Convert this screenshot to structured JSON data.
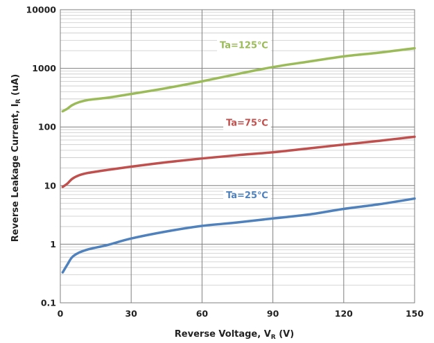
{
  "chart_data": {
    "type": "line",
    "xlabel_main": "Reverse Voltage, V",
    "xlabel_sub": "R",
    "xlabel_unit": " (V)",
    "ylabel_main": "Reverse Leakage Current, I",
    "ylabel_sub": "R",
    "ylabel_unit": " (uA)",
    "xlim": [
      0,
      150
    ],
    "ylim": [
      0.1,
      10000
    ],
    "yscale": "log",
    "grid": true,
    "x_ticks": [
      0,
      30,
      60,
      90,
      120,
      150
    ],
    "x_tick_labels": [
      "0",
      "30",
      "60",
      "90",
      "120",
      "150"
    ],
    "y_ticks": [
      0.1,
      1,
      10,
      100,
      1000,
      10000
    ],
    "y_tick_labels": [
      "0.1",
      "1",
      "10",
      "100",
      "1000",
      "10000"
    ],
    "series": [
      {
        "name": "Ta=125℃",
        "color": "#9BBB59",
        "label_at": [
          88,
          2200
        ],
        "points": [
          [
            1,
            185
          ],
          [
            3,
            205
          ],
          [
            5,
            235
          ],
          [
            8,
            265
          ],
          [
            12,
            290
          ],
          [
            20,
            315
          ],
          [
            30,
            365
          ],
          [
            45,
            460
          ],
          [
            60,
            600
          ],
          [
            75,
            800
          ],
          [
            90,
            1050
          ],
          [
            105,
            1300
          ],
          [
            120,
            1600
          ],
          [
            135,
            1850
          ],
          [
            150,
            2200
          ]
        ]
      },
      {
        "name": "Ta=75℃",
        "color": "#C0504D",
        "label_at": [
          88,
          105
        ],
        "points": [
          [
            1,
            9.5
          ],
          [
            3,
            10.8
          ],
          [
            5,
            13
          ],
          [
            8,
            15
          ],
          [
            12,
            16.5
          ],
          [
            20,
            18.5
          ],
          [
            30,
            21
          ],
          [
            45,
            25
          ],
          [
            60,
            29
          ],
          [
            75,
            33
          ],
          [
            90,
            37
          ],
          [
            105,
            43
          ],
          [
            120,
            50
          ],
          [
            135,
            58
          ],
          [
            150,
            68
          ]
        ]
      },
      {
        "name": "Ta=25℃",
        "color": "#4F81BD",
        "label_at": [
          88,
          6.1
        ],
        "points": [
          [
            1,
            0.33
          ],
          [
            3,
            0.45
          ],
          [
            5,
            0.6
          ],
          [
            8,
            0.72
          ],
          [
            12,
            0.82
          ],
          [
            20,
            0.97
          ],
          [
            30,
            1.25
          ],
          [
            45,
            1.65
          ],
          [
            60,
            2.05
          ],
          [
            75,
            2.35
          ],
          [
            90,
            2.75
          ],
          [
            105,
            3.2
          ],
          [
            120,
            4
          ],
          [
            135,
            4.8
          ],
          [
            150,
            6
          ]
        ]
      }
    ]
  }
}
